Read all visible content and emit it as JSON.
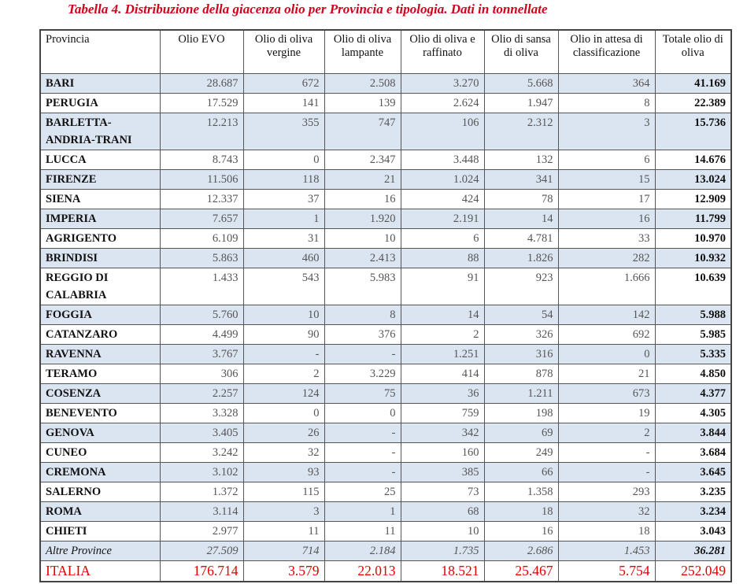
{
  "title": "Tabella 4. Distribuzione della giacenza olio per Provincia e tipologia. Dati in tonnellate",
  "headers": [
    "Provincia",
    "Olio EVO",
    "Olio di oliva vergine",
    "Olio di oliva lampante",
    "Olio di oliva e raffinato",
    "Olio di sansa di oliva",
    "Olio in attesa di classificazione",
    "Totale olio di oliva"
  ],
  "rows": [
    [
      "BARI",
      "28.687",
      "672",
      "2.508",
      "3.270",
      "5.668",
      "364",
      "41.169"
    ],
    [
      "PERUGIA",
      "17.529",
      "141",
      "139",
      "2.624",
      "1.947",
      "8",
      "22.389"
    ],
    [
      "BARLETTA-ANDRIA-TRANI",
      "12.213",
      "355",
      "747",
      "106",
      "2.312",
      "3",
      "15.736"
    ],
    [
      "LUCCA",
      "8.743",
      "0",
      "2.347",
      "3.448",
      "132",
      "6",
      "14.676"
    ],
    [
      "FIRENZE",
      "11.506",
      "118",
      "21",
      "1.024",
      "341",
      "15",
      "13.024"
    ],
    [
      "SIENA",
      "12.337",
      "37",
      "16",
      "424",
      "78",
      "17",
      "12.909"
    ],
    [
      "IMPERIA",
      "7.657",
      "1",
      "1.920",
      "2.191",
      "14",
      "16",
      "11.799"
    ],
    [
      "AGRIGENTO",
      "6.109",
      "31",
      "10",
      "6",
      "4.781",
      "33",
      "10.970"
    ],
    [
      "BRINDISI",
      "5.863",
      "460",
      "2.413",
      "88",
      "1.826",
      "282",
      "10.932"
    ],
    [
      "REGGIO DI CALABRIA",
      "1.433",
      "543",
      "5.983",
      "91",
      "923",
      "1.666",
      "10.639"
    ],
    [
      "FOGGIA",
      "5.760",
      "10",
      "8",
      "14",
      "54",
      "142",
      "5.988"
    ],
    [
      "CATANZARO",
      "4.499",
      "90",
      "376",
      "2",
      "326",
      "692",
      "5.985"
    ],
    [
      "RAVENNA",
      "3.767",
      "-",
      "-",
      "1.251",
      "316",
      "0",
      "5.335"
    ],
    [
      "TERAMO",
      "306",
      "2",
      "3.229",
      "414",
      "878",
      "21",
      "4.850"
    ],
    [
      "COSENZA",
      "2.257",
      "124",
      "75",
      "36",
      "1.211",
      "673",
      "4.377"
    ],
    [
      "BENEVENTO",
      "3.328",
      "0",
      "0",
      "759",
      "198",
      "19",
      "4.305"
    ],
    [
      "GENOVA",
      "3.405",
      "26",
      "-",
      "342",
      "69",
      "2",
      "3.844"
    ],
    [
      "CUNEO",
      "3.242",
      "32",
      "-",
      "160",
      "249",
      "-",
      "3.684"
    ],
    [
      "CREMONA",
      "3.102",
      "93",
      "-",
      "385",
      "66",
      "-",
      "3.645"
    ],
    [
      "SALERNO",
      "1.372",
      "115",
      "25",
      "73",
      "1.358",
      "293",
      "3.235"
    ],
    [
      "ROMA",
      "3.114",
      "3",
      "1",
      "68",
      "18",
      "32",
      "3.234"
    ],
    [
      "CHIETI",
      "2.977",
      "11",
      "11",
      "10",
      "16",
      "18",
      "3.043"
    ],
    [
      "Altre Province",
      "27.509",
      "714",
      "2.184",
      "1.735",
      "2.686",
      "1.453",
      "36.281"
    ],
    [
      "ITALIA",
      "176.714",
      "3.579",
      "22.013",
      "18.521",
      "25.467",
      "5.754",
      "252.049"
    ]
  ],
  "colors": {
    "title": "#d0021b",
    "stripe": "#dbe5f1",
    "total_row": "#e00000"
  }
}
